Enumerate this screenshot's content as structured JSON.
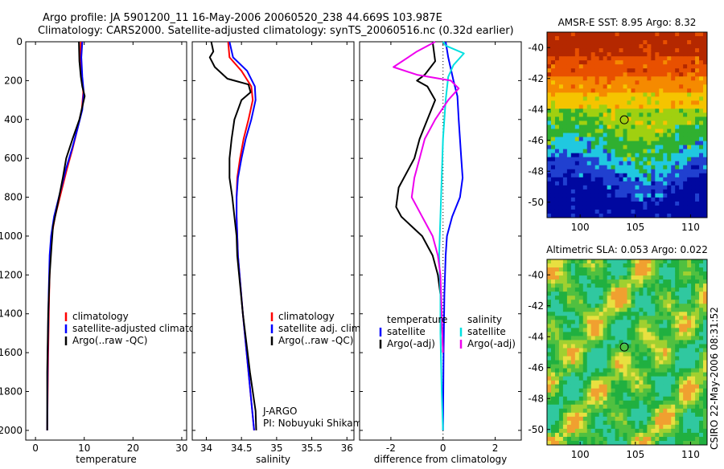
{
  "header": {
    "line1": "Argo profile: JA 5901200_11 16-May-2006 20060520_238 44.669S 103.987E",
    "line2": "Climatology: CARS2000. Satellite-adjusted climatology: synTS_20060516.nc (0.32d earlier)"
  },
  "colors": {
    "climatology": "#ff0000",
    "satellite": "#0000ff",
    "argo": "#000000",
    "sat_salinity": "#00e0e0",
    "argo_adj_salinity": "#ee00ee"
  },
  "footer": {
    "credit": "CSIRO 22-May-2006 08:31:52"
  },
  "chart_data": [
    {
      "type": "line",
      "title": "",
      "xlabel": "temperature",
      "ylabel": "",
      "xlim": [
        -2,
        31
      ],
      "ylim": [
        2050,
        0
      ],
      "xticks": [
        0,
        10,
        20,
        30
      ],
      "yticks": [
        0,
        200,
        400,
        600,
        800,
        1000,
        1200,
        1400,
        1600,
        1800,
        2000
      ],
      "legend": [
        "climatology",
        "satellite-adjusted climatology",
        "Argo(..raw -QC)"
      ],
      "series": [
        {
          "name": "climatology",
          "x": [
            9.3,
            9.2,
            9.5,
            9.8,
            9.5,
            8.6,
            7.6,
            6.5,
            5.2,
            4.0,
            3.3,
            3.0,
            2.8,
            2.6,
            2.4
          ],
          "y": [
            0,
            80,
            180,
            260,
            350,
            450,
            550,
            650,
            780,
            900,
            1000,
            1100,
            1300,
            1600,
            2000
          ]
        },
        {
          "name": "satellite-adjusted climatology",
          "x": [
            9.6,
            9.4,
            9.6,
            9.9,
            9.6,
            8.6,
            7.5,
            6.3,
            5.0,
            3.8,
            3.2,
            2.9,
            2.7,
            2.5,
            2.4
          ],
          "y": [
            0,
            80,
            180,
            260,
            350,
            450,
            550,
            650,
            780,
            900,
            1000,
            1100,
            1300,
            1600,
            2000
          ]
        },
        {
          "name": "Argo(..raw -QC)",
          "x": [
            8.9,
            9.0,
            9.3,
            9.6,
            10.1,
            9.0,
            7.6,
            6.3,
            5.6,
            4.6,
            3.6,
            3.3,
            2.9,
            2.6,
            2.4,
            2.4
          ],
          "y": [
            0,
            100,
            180,
            230,
            280,
            400,
            500,
            600,
            700,
            830,
            950,
            1050,
            1200,
            1400,
            1700,
            2000
          ]
        }
      ]
    },
    {
      "type": "line",
      "title": "",
      "xlabel": "salinity",
      "ylabel": "",
      "xlim": [
        33.8,
        36.1
      ],
      "ylim": [
        2050,
        0
      ],
      "xticks": [
        34,
        34.5,
        35,
        35.5,
        36
      ],
      "yticks": [
        0,
        200,
        400,
        600,
        800,
        1000,
        1200,
        1400,
        1600,
        1800,
        2000
      ],
      "legend": [
        "climatology",
        "satellite adj. clim.",
        "Argo(..raw -QC)"
      ],
      "annotation": [
        "J-ARGO",
        "PI: Nobuyuki Shikama"
      ],
      "series": [
        {
          "name": "climatology",
          "x": [
            34.31,
            34.33,
            34.5,
            34.64,
            34.66,
            34.6,
            34.53,
            34.48,
            34.44,
            34.43,
            34.43,
            34.45,
            34.52,
            34.6,
            34.68
          ],
          "y": [
            0,
            80,
            150,
            230,
            300,
            400,
            500,
            600,
            700,
            800,
            900,
            1100,
            1400,
            1700,
            2000
          ]
        },
        {
          "name": "satellite adj. clim.",
          "x": [
            34.33,
            34.38,
            34.58,
            34.69,
            34.7,
            34.64,
            34.56,
            34.5,
            34.45,
            34.43,
            34.43,
            34.45,
            34.52,
            34.6,
            34.68
          ],
          "y": [
            0,
            80,
            150,
            230,
            300,
            400,
            500,
            600,
            700,
            800,
            900,
            1100,
            1400,
            1700,
            2000
          ]
        },
        {
          "name": "Argo(..raw -QC)",
          "x": [
            34.07,
            34.1,
            34.05,
            34.12,
            34.3,
            34.4,
            34.6,
            34.63,
            34.5,
            34.4,
            34.36,
            34.33,
            34.33,
            34.37,
            34.4,
            34.43,
            34.44,
            34.52,
            34.62,
            34.7,
            34.71
          ],
          "y": [
            0,
            50,
            80,
            130,
            190,
            200,
            220,
            260,
            300,
            400,
            500,
            600,
            700,
            800,
            900,
            1000,
            1100,
            1400,
            1700,
            1900,
            2000
          ]
        }
      ]
    },
    {
      "type": "line",
      "title": "",
      "xlabel": "difference from climatology",
      "ylabel": "",
      "xlim": [
        -3.2,
        3.0
      ],
      "ylim": [
        2050,
        0
      ],
      "xticks": [
        -2,
        0,
        2
      ],
      "yticks": [
        0,
        200,
        400,
        600,
        800,
        1000,
        1200,
        1400,
        1600,
        1800,
        2000
      ],
      "zero_line": "dotted",
      "legend": [
        {
          "group": "temperature",
          "items": [
            "satellite",
            "Argo(-adj)"
          ]
        },
        {
          "group": "salinity",
          "items": [
            "satellite",
            "Argo(-adj)"
          ]
        }
      ],
      "series": [
        {
          "name": "temperature satellite",
          "x": [
            0.1,
            0.2,
            0.4,
            0.55,
            0.6,
            0.65,
            0.7,
            0.75,
            0.65,
            0.35,
            0.15,
            0.1,
            0.05,
            0.02,
            0.0
          ],
          "y": [
            0,
            80,
            200,
            280,
            400,
            500,
            600,
            700,
            800,
            900,
            1000,
            1100,
            1300,
            1600,
            2000
          ]
        },
        {
          "name": "temperature Argo(-adj)",
          "x": [
            -0.4,
            -0.3,
            -0.7,
            -1.0,
            -0.6,
            -0.3,
            -0.6,
            -0.9,
            -1.1,
            -1.3,
            -1.7,
            -1.8,
            -1.6,
            -1.2,
            -0.8,
            -0.4,
            -0.2,
            -0.1,
            -0.05,
            0.0
          ],
          "y": [
            0,
            100,
            170,
            200,
            230,
            300,
            400,
            500,
            600,
            650,
            750,
            850,
            900,
            950,
            1000,
            1100,
            1200,
            1300,
            1400,
            1600
          ]
        },
        {
          "name": "salinity satellite",
          "x": [
            0.0,
            0.1,
            0.8,
            0.4,
            0.2,
            0.1,
            0.0,
            -0.05,
            -0.1,
            -0.15,
            -0.1,
            -0.1,
            -0.05,
            0.0
          ],
          "y": [
            0,
            20,
            60,
            120,
            180,
            300,
            500,
            700,
            900,
            1100,
            1300,
            1500,
            1800,
            2000
          ]
        },
        {
          "name": "salinity Argo(-adj)",
          "x": [
            -0.3,
            -1.0,
            -1.9,
            -1.0,
            0.3,
            0.6,
            0.2,
            -0.3,
            -0.7,
            -0.9,
            -1.1,
            -1.2,
            -1.0,
            -0.8,
            -0.6,
            -0.4,
            -0.2,
            -0.1,
            -0.05,
            0.0
          ],
          "y": [
            0,
            50,
            130,
            170,
            200,
            240,
            300,
            400,
            500,
            600,
            700,
            800,
            850,
            900,
            950,
            1000,
            1100,
            1200,
            1400,
            1600
          ]
        }
      ]
    },
    {
      "type": "heatmap",
      "title": "AMSR-E SST: 8.95 Argo: 8.32",
      "xlim": [
        97,
        111.5
      ],
      "ylim": [
        -51,
        -39
      ],
      "xticks": [
        100,
        105,
        110
      ],
      "yticks": [
        -40,
        -42,
        -44,
        -46,
        -48,
        -50
      ],
      "marker": {
        "x": 104,
        "y": -44.67
      },
      "colors_north_to_south": [
        "#b42800",
        "#e85000",
        "#f58a00",
        "#f5c400",
        "#a0d010",
        "#30b030",
        "#20c8e0",
        "#2040d0",
        "#0008a0"
      ]
    },
    {
      "type": "heatmap",
      "title": "Altimetric SLA: 0.053 Argo: 0.022",
      "xlim": [
        97,
        111.5
      ],
      "ylim": [
        -51,
        -39
      ],
      "xticks": [
        100,
        105,
        110
      ],
      "yticks": [
        -40,
        -42,
        -44,
        -46,
        -48,
        -50
      ],
      "marker": {
        "x": 104,
        "y": -44.67
      },
      "colors": [
        "#20b040",
        "#50c040",
        "#a0d030",
        "#e8e040",
        "#f0a030",
        "#30c8a0"
      ]
    }
  ]
}
